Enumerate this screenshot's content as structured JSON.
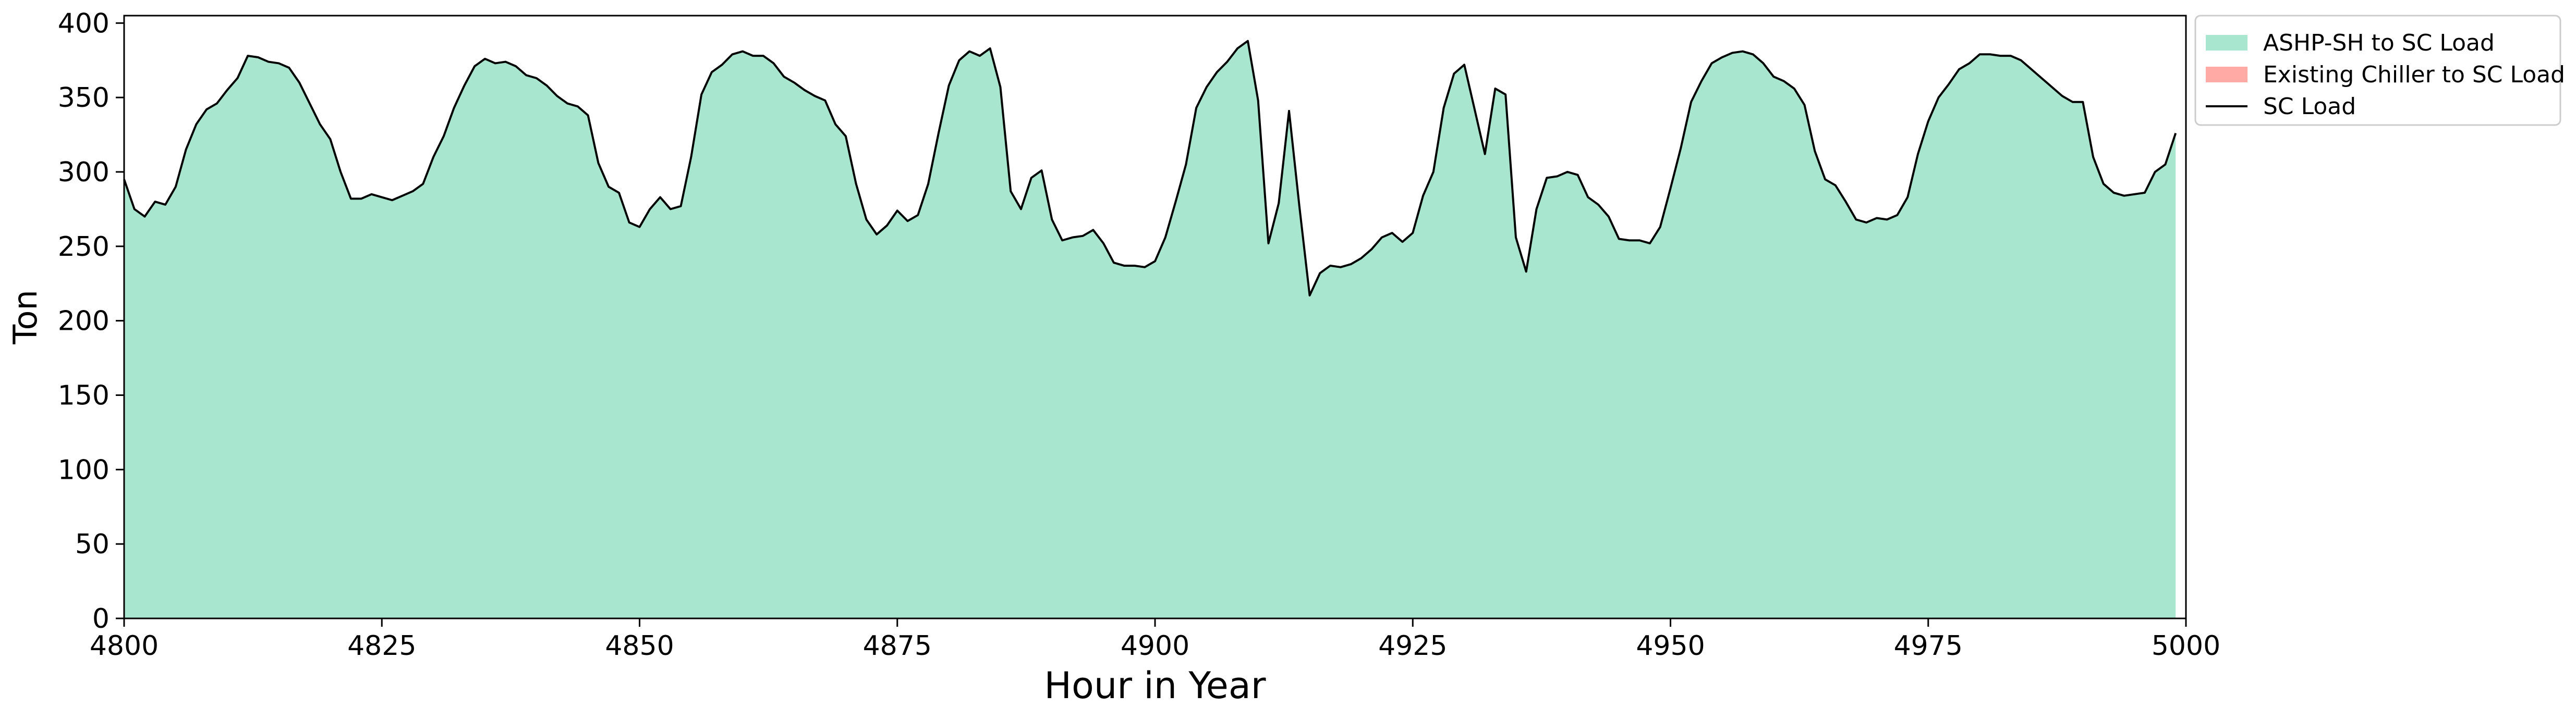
{
  "chart_data": {
    "type": "area",
    "title": "",
    "xlabel": "Hour in Year",
    "ylabel": "Ton",
    "xlim": [
      4800,
      5000
    ],
    "ylim": [
      0,
      405
    ],
    "grid": false,
    "legend_placement": "outside-top-right",
    "x_ticks": [
      4800,
      4825,
      4850,
      4875,
      4900,
      4925,
      4950,
      4975,
      5000
    ],
    "y_ticks": [
      0,
      50,
      100,
      150,
      200,
      250,
      300,
      350,
      400
    ],
    "x": [
      4800,
      4801,
      4802,
      4803,
      4804,
      4805,
      4806,
      4807,
      4808,
      4809,
      4810,
      4811,
      4812,
      4813,
      4814,
      4815,
      4816,
      4817,
      4818,
      4819,
      4820,
      4821,
      4822,
      4823,
      4824,
      4825,
      4826,
      4827,
      4828,
      4829,
      4830,
      4831,
      4832,
      4833,
      4834,
      4835,
      4836,
      4837,
      4838,
      4839,
      4840,
      4841,
      4842,
      4843,
      4844,
      4845,
      4846,
      4847,
      4848,
      4849,
      4850,
      4851,
      4852,
      4853,
      4854,
      4855,
      4856,
      4857,
      4858,
      4859,
      4860,
      4861,
      4862,
      4863,
      4864,
      4865,
      4866,
      4867,
      4868,
      4869,
      4870,
      4871,
      4872,
      4873,
      4874,
      4875,
      4876,
      4877,
      4878,
      4879,
      4880,
      4881,
      4882,
      4883,
      4884,
      4885,
      4886,
      4887,
      4888,
      4889,
      4890,
      4891,
      4892,
      4893,
      4894,
      4895,
      4896,
      4897,
      4898,
      4899,
      4900,
      4901,
      4902,
      4903,
      4904,
      4905,
      4906,
      4907,
      4908,
      4909,
      4910,
      4911,
      4912,
      4913,
      4914,
      4915,
      4916,
      4917,
      4918,
      4919,
      4920,
      4921,
      4922,
      4923,
      4924,
      4925,
      4926,
      4927,
      4928,
      4929,
      4930,
      4931,
      4932,
      4933,
      4934,
      4935,
      4936,
      4937,
      4938,
      4939,
      4940,
      4941,
      4942,
      4943,
      4944,
      4945,
      4946,
      4947,
      4948,
      4949,
      4950,
      4951,
      4952,
      4953,
      4954,
      4955,
      4956,
      4957,
      4958,
      4959,
      4960,
      4961,
      4962,
      4963,
      4964,
      4965,
      4966,
      4967,
      4968,
      4969,
      4970,
      4971,
      4972,
      4973,
      4974,
      4975,
      4976,
      4977,
      4978,
      4979,
      4980,
      4981,
      4982,
      4983,
      4984,
      4985,
      4986,
      4987,
      4988,
      4989,
      4990,
      4991,
      4992,
      4993,
      4994,
      4995,
      4996,
      4997,
      4998,
      4999
    ],
    "series": [
      {
        "name": "ASHP-SH to SC Load",
        "kind": "area",
        "color": "#a8e6cf",
        "values": [
          295,
          275,
          270,
          280,
          278,
          290,
          315,
          332,
          342,
          346,
          355,
          363,
          378,
          377,
          374,
          373,
          370,
          360,
          346,
          332,
          322,
          300,
          282,
          282,
          285,
          283,
          281,
          284,
          287,
          292,
          310,
          324,
          343,
          358,
          371,
          376,
          373,
          374,
          371,
          365,
          363,
          358,
          351,
          346,
          344,
          338,
          306,
          290,
          286,
          266,
          263,
          275,
          283,
          275,
          277,
          310,
          352,
          367,
          372,
          379,
          381,
          378,
          378,
          373,
          364,
          360,
          355,
          351,
          348,
          332,
          324,
          292,
          268,
          258,
          264,
          274,
          267,
          271,
          292,
          326,
          358,
          375,
          381,
          378,
          383,
          357,
          287,
          275,
          296,
          301,
          268,
          254,
          256,
          257,
          261,
          252,
          239,
          237,
          237,
          236,
          240,
          256,
          280,
          305,
          343,
          357,
          367,
          374,
          383,
          388,
          348,
          252,
          279,
          341,
          277,
          217,
          232,
          237,
          236,
          238,
          242,
          248,
          256,
          259,
          253,
          259,
          284,
          300,
          343,
          366,
          372,
          342,
          312,
          356,
          352,
          256,
          233,
          275,
          296,
          297,
          300,
          298,
          283,
          278,
          270,
          255,
          254,
          254,
          252,
          263,
          289,
          316,
          347,
          361,
          373,
          377,
          380,
          381,
          379,
          373,
          364,
          361,
          356,
          345,
          314,
          295,
          291,
          280,
          268,
          266,
          269,
          268,
          271,
          283,
          312,
          334,
          350,
          359,
          369,
          373,
          379,
          379,
          378,
          378,
          375,
          369,
          363,
          357,
          351,
          347,
          347,
          310,
          292,
          286,
          284,
          285,
          286,
          300,
          305,
          326
        ]
      },
      {
        "name": "Existing Chiller to SC Load",
        "kind": "area",
        "color": "#ffaaa5",
        "values": [
          0,
          0,
          0,
          0,
          0,
          0,
          0,
          0,
          0,
          0,
          0,
          0,
          0,
          0,
          0,
          0,
          0,
          0,
          0,
          0,
          0,
          0,
          0,
          0,
          0,
          0,
          0,
          0,
          0,
          0,
          0,
          0,
          0,
          0,
          0,
          0,
          0,
          0,
          0,
          0,
          0,
          0,
          0,
          0,
          0,
          0,
          0,
          0,
          0,
          0,
          0,
          0,
          0,
          0,
          0,
          0,
          0,
          0,
          0,
          0,
          0,
          0,
          0,
          0,
          0,
          0,
          0,
          0,
          0,
          0,
          0,
          0,
          0,
          0,
          0,
          0,
          0,
          0,
          0,
          0,
          0,
          0,
          0,
          0,
          0,
          0,
          0,
          0,
          0,
          0,
          0,
          0,
          0,
          0,
          0,
          0,
          0,
          0,
          0,
          0,
          0,
          0,
          0,
          0,
          0,
          0,
          0,
          0,
          0,
          0,
          0,
          0,
          0,
          0,
          0,
          0,
          0,
          0,
          0,
          0,
          0,
          0,
          0,
          0,
          0,
          0,
          0,
          0,
          0,
          0,
          0,
          0,
          0,
          0,
          0,
          0,
          0,
          0,
          0,
          0,
          0,
          0,
          0,
          0,
          0,
          0,
          0,
          0,
          0,
          0,
          0,
          0,
          0,
          0,
          0,
          0,
          0,
          0,
          0,
          0,
          0,
          0,
          0,
          0,
          0,
          0,
          0,
          0,
          0,
          0,
          0,
          0,
          0,
          0,
          0,
          0,
          0,
          0,
          0,
          0,
          0,
          0,
          0,
          0,
          0,
          0,
          0,
          0,
          0,
          0,
          0,
          0,
          0,
          0,
          0,
          0,
          0,
          0,
          0,
          0
        ]
      },
      {
        "name": "SC Load",
        "kind": "line",
        "color": "#000000",
        "values": [
          295,
          275,
          270,
          280,
          278,
          290,
          315,
          332,
          342,
          346,
          355,
          363,
          378,
          377,
          374,
          373,
          370,
          360,
          346,
          332,
          322,
          300,
          282,
          282,
          285,
          283,
          281,
          284,
          287,
          292,
          310,
          324,
          343,
          358,
          371,
          376,
          373,
          374,
          371,
          365,
          363,
          358,
          351,
          346,
          344,
          338,
          306,
          290,
          286,
          266,
          263,
          275,
          283,
          275,
          277,
          310,
          352,
          367,
          372,
          379,
          381,
          378,
          378,
          373,
          364,
          360,
          355,
          351,
          348,
          332,
          324,
          292,
          268,
          258,
          264,
          274,
          267,
          271,
          292,
          326,
          358,
          375,
          381,
          378,
          383,
          357,
          287,
          275,
          296,
          301,
          268,
          254,
          256,
          257,
          261,
          252,
          239,
          237,
          237,
          236,
          240,
          256,
          280,
          305,
          343,
          357,
          367,
          374,
          383,
          388,
          348,
          252,
          279,
          341,
          277,
          217,
          232,
          237,
          236,
          238,
          242,
          248,
          256,
          259,
          253,
          259,
          284,
          300,
          343,
          366,
          372,
          342,
          312,
          356,
          352,
          256,
          233,
          275,
          296,
          297,
          300,
          298,
          283,
          278,
          270,
          255,
          254,
          254,
          252,
          263,
          289,
          316,
          347,
          361,
          373,
          377,
          380,
          381,
          379,
          373,
          364,
          361,
          356,
          345,
          314,
          295,
          291,
          280,
          268,
          266,
          269,
          268,
          271,
          283,
          312,
          334,
          350,
          359,
          369,
          373,
          379,
          379,
          378,
          378,
          375,
          369,
          363,
          357,
          351,
          347,
          347,
          310,
          292,
          286,
          284,
          285,
          286,
          300,
          305,
          326
        ]
      }
    ]
  }
}
